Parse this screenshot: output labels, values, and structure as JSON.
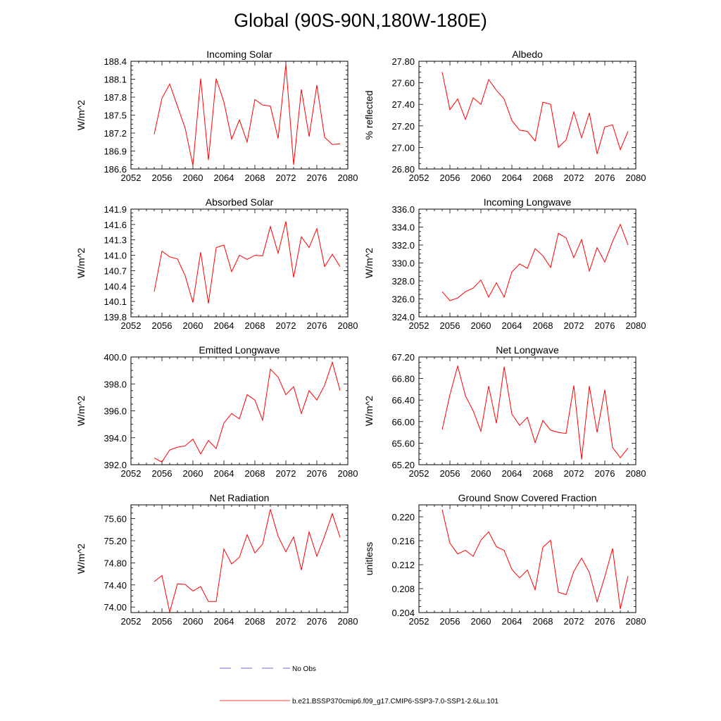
{
  "title": "Global (90S-90N,180W-180E)",
  "colors": {
    "model_line": "#ff0000",
    "obs_line": "#4040c0",
    "axis": "#000000"
  },
  "legend": {
    "obs_label": "No Obs",
    "model_label": "b.e21.BSSP370cmip6.f09_g17.CMIP6-SSP3-7.0-SSP1-2.6Lu.101"
  },
  "chart_data": [
    {
      "type": "line",
      "title": "Incoming Solar",
      "ylabel": "W/m^2",
      "xlabel": "",
      "xlim": [
        2052,
        2080
      ],
      "x_ticks": [
        "2052",
        "2056",
        "2060",
        "2064",
        "2068",
        "2072",
        "2076",
        "2080"
      ],
      "ylim": [
        186.6,
        188.4
      ],
      "y_ticks": [
        "186.6",
        "186.9",
        "187.2",
        "187.5",
        "187.8",
        "188.1",
        "188.4"
      ],
      "x": [
        2055,
        2056,
        2057,
        2058,
        2059,
        2060,
        2061,
        2062,
        2063,
        2064,
        2065,
        2066,
        2067,
        2068,
        2069,
        2070,
        2071,
        2072,
        2073,
        2074,
        2075,
        2076,
        2077,
        2078,
        2079
      ],
      "series": [
        {
          "values": [
            187.18,
            187.78,
            188.02,
            187.65,
            187.28,
            186.66,
            188.11,
            186.75,
            188.11,
            187.72,
            187.1,
            187.42,
            187.05,
            187.76,
            187.67,
            187.65,
            187.11,
            188.35,
            186.67,
            187.93,
            187.14,
            188.0,
            187.13,
            187.01,
            187.02
          ]
        }
      ]
    },
    {
      "type": "line",
      "title": "Albedo",
      "ylabel": "% reflected",
      "xlabel": "",
      "xlim": [
        2052,
        2080
      ],
      "x_ticks": [
        "2052",
        "2056",
        "2060",
        "2064",
        "2068",
        "2072",
        "2076",
        "2080"
      ],
      "ylim": [
        26.8,
        27.8
      ],
      "y_ticks": [
        "26.80",
        "27.00",
        "27.20",
        "27.40",
        "27.60",
        "27.80"
      ],
      "x": [
        2055,
        2056,
        2057,
        2058,
        2059,
        2060,
        2061,
        2062,
        2063,
        2064,
        2065,
        2066,
        2067,
        2068,
        2069,
        2070,
        2071,
        2072,
        2073,
        2074,
        2075,
        2076,
        2077,
        2078,
        2079
      ],
      "series": [
        {
          "values": [
            27.7,
            27.35,
            27.45,
            27.26,
            27.46,
            27.4,
            27.63,
            27.53,
            27.45,
            27.25,
            27.16,
            27.15,
            27.06,
            27.42,
            27.4,
            27.0,
            27.07,
            27.33,
            27.09,
            27.32,
            26.94,
            27.19,
            27.21,
            26.98,
            27.15
          ]
        }
      ]
    },
    {
      "type": "line",
      "title": "Absorbed Solar",
      "ylabel": "W/m^2",
      "xlabel": "",
      "xlim": [
        2052,
        2080
      ],
      "x_ticks": [
        "2052",
        "2056",
        "2060",
        "2064",
        "2068",
        "2072",
        "2076",
        "2080"
      ],
      "ylim": [
        139.8,
        141.9
      ],
      "y_ticks": [
        "139.8",
        "140.1",
        "140.4",
        "140.7",
        "141.0",
        "141.3",
        "141.6",
        "141.9"
      ],
      "x": [
        2055,
        2056,
        2057,
        2058,
        2059,
        2060,
        2061,
        2062,
        2063,
        2064,
        2065,
        2066,
        2067,
        2068,
        2069,
        2070,
        2071,
        2072,
        2073,
        2074,
        2075,
        2076,
        2077,
        2078,
        2079
      ],
      "series": [
        {
          "values": [
            140.29,
            141.08,
            140.97,
            140.93,
            140.6,
            140.08,
            141.06,
            140.06,
            141.15,
            141.2,
            140.68,
            141.0,
            140.92,
            141.0,
            140.99,
            141.56,
            141.04,
            141.66,
            140.57,
            141.36,
            141.15,
            141.52,
            140.78,
            141.02,
            140.78
          ]
        }
      ]
    },
    {
      "type": "line",
      "title": "Incoming Longwave",
      "ylabel": "W/m^2",
      "xlabel": "",
      "xlim": [
        2052,
        2080
      ],
      "x_ticks": [
        "2052",
        "2056",
        "2060",
        "2064",
        "2068",
        "2072",
        "2076",
        "2080"
      ],
      "ylim": [
        324.0,
        336.0
      ],
      "y_ticks": [
        "324.0",
        "326.0",
        "328.0",
        "330.0",
        "332.0",
        "334.0",
        "336.0"
      ],
      "x": [
        2055,
        2056,
        2057,
        2058,
        2059,
        2060,
        2061,
        2062,
        2063,
        2064,
        2065,
        2066,
        2067,
        2068,
        2069,
        2070,
        2071,
        2072,
        2073,
        2074,
        2075,
        2076,
        2077,
        2078,
        2079
      ],
      "series": [
        {
          "values": [
            326.8,
            325.8,
            326.1,
            326.8,
            327.2,
            328.1,
            326.2,
            327.8,
            326.2,
            329.0,
            329.9,
            329.4,
            331.6,
            330.8,
            329.5,
            333.3,
            332.8,
            330.6,
            332.6,
            329.1,
            331.7,
            330.1,
            332.4,
            334.3,
            332.0
          ]
        }
      ]
    },
    {
      "type": "line",
      "title": "Emitted Longwave",
      "ylabel": "W/m^2",
      "xlabel": "",
      "xlim": [
        2052,
        2080
      ],
      "x_ticks": [
        "2052",
        "2056",
        "2060",
        "2064",
        "2068",
        "2072",
        "2076",
        "2080"
      ],
      "ylim": [
        392.0,
        400.0
      ],
      "y_ticks": [
        "392.0",
        "394.0",
        "396.0",
        "398.0",
        "400.0"
      ],
      "x": [
        2055,
        2056,
        2057,
        2058,
        2059,
        2060,
        2061,
        2062,
        2063,
        2064,
        2065,
        2066,
        2067,
        2068,
        2069,
        2070,
        2071,
        2072,
        2073,
        2074,
        2075,
        2076,
        2077,
        2078,
        2079
      ],
      "series": [
        {
          "values": [
            392.5,
            392.2,
            393.1,
            393.3,
            393.4,
            393.9,
            392.8,
            393.8,
            393.2,
            395.1,
            395.8,
            395.4,
            397.2,
            396.8,
            395.3,
            399.1,
            398.5,
            397.2,
            397.8,
            395.8,
            397.5,
            396.8,
            397.9,
            399.6,
            397.5
          ]
        }
      ]
    },
    {
      "type": "line",
      "title": "Net Longwave",
      "ylabel": "W/m^2",
      "xlabel": "",
      "xlim": [
        2052,
        2080
      ],
      "x_ticks": [
        "2052",
        "2056",
        "2060",
        "2064",
        "2068",
        "2072",
        "2076",
        "2080"
      ],
      "ylim": [
        65.2,
        67.2
      ],
      "y_ticks": [
        "65.20",
        "65.60",
        "66.00",
        "66.40",
        "66.80",
        "67.20"
      ],
      "x": [
        2055,
        2056,
        2057,
        2058,
        2059,
        2060,
        2061,
        2062,
        2063,
        2064,
        2065,
        2066,
        2067,
        2068,
        2069,
        2070,
        2071,
        2072,
        2073,
        2074,
        2075,
        2076,
        2077,
        2078,
        2079
      ],
      "series": [
        {
          "values": [
            65.85,
            66.5,
            67.03,
            66.48,
            66.2,
            65.82,
            66.66,
            65.97,
            67.02,
            66.14,
            65.93,
            66.08,
            65.61,
            66.02,
            65.84,
            65.8,
            65.78,
            66.67,
            65.3,
            66.66,
            65.8,
            66.59,
            65.52,
            65.33,
            65.51
          ]
        }
      ]
    },
    {
      "type": "line",
      "title": "Net Radiation",
      "ylabel": "W/m^2",
      "xlabel": "",
      "xlim": [
        2052,
        2080
      ],
      "x_ticks": [
        "2052",
        "2056",
        "2060",
        "2064",
        "2068",
        "2072",
        "2076",
        "2080"
      ],
      "ylim": [
        73.9,
        75.85
      ],
      "y_ticks": [
        "74.00",
        "74.40",
        "74.80",
        "75.20",
        "75.60"
      ],
      "x": [
        2055,
        2056,
        2057,
        2058,
        2059,
        2060,
        2061,
        2062,
        2063,
        2064,
        2065,
        2066,
        2067,
        2068,
        2069,
        2070,
        2071,
        2072,
        2073,
        2074,
        2075,
        2076,
        2077,
        2078,
        2079
      ],
      "series": [
        {
          "values": [
            74.46,
            74.57,
            73.91,
            74.42,
            74.41,
            74.29,
            74.37,
            74.1,
            74.1,
            75.05,
            74.78,
            74.9,
            75.31,
            74.98,
            75.14,
            75.77,
            75.28,
            75.0,
            75.27,
            74.67,
            75.36,
            74.92,
            75.28,
            75.69,
            75.26
          ]
        }
      ]
    },
    {
      "type": "line",
      "title": "Ground Snow Covered Fraction",
      "ylabel": "unitless",
      "xlabel": "",
      "xlim": [
        2052,
        2080
      ],
      "x_ticks": [
        "2052",
        "2056",
        "2060",
        "2064",
        "2068",
        "2072",
        "2076",
        "2080"
      ],
      "ylim": [
        0.204,
        0.222
      ],
      "y_ticks": [
        "0.204",
        "0.208",
        "0.212",
        "0.216",
        "0.220"
      ],
      "x": [
        2055,
        2056,
        2057,
        2058,
        2059,
        2060,
        2061,
        2062,
        2063,
        2064,
        2065,
        2066,
        2067,
        2068,
        2069,
        2070,
        2071,
        2072,
        2073,
        2074,
        2075,
        2076,
        2077,
        2078,
        2079
      ],
      "series": [
        {
          "values": [
            0.2212,
            0.2156,
            0.2138,
            0.2144,
            0.2134,
            0.2161,
            0.2175,
            0.215,
            0.2144,
            0.2112,
            0.2098,
            0.2111,
            0.2078,
            0.2149,
            0.2161,
            0.2074,
            0.207,
            0.2109,
            0.2131,
            0.2107,
            0.2058,
            0.21,
            0.2147,
            0.2046,
            0.2101
          ]
        }
      ]
    }
  ]
}
